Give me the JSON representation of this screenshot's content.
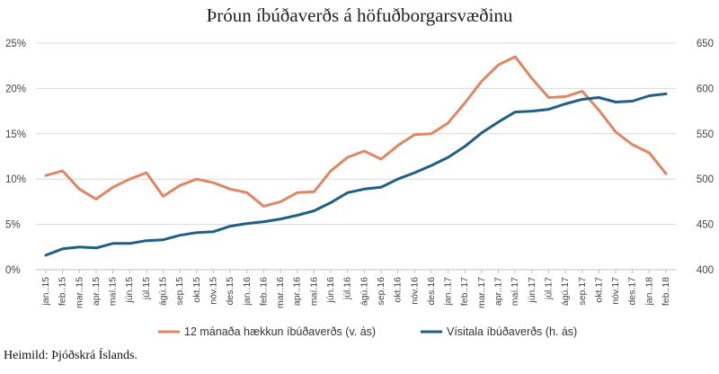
{
  "chart_data": {
    "type": "line",
    "title": "Þróun íbúðaverðs á höfuðborgarsvæðinu",
    "source": "Heimild: Þjóðskrá Íslands.",
    "categories": [
      "jan..15",
      "feb..15",
      "mar..15",
      "apr..15",
      "maí.15",
      "jún.15",
      "júl.15",
      "ágú.15",
      "sep.15",
      "okt.15",
      "nóv.15",
      "des.15",
      "jan..16",
      "feb..16",
      "mar..16",
      "apr..16",
      "maí.16",
      "jún.16",
      "júl.16",
      "ágú.16",
      "sep.16",
      "okt.16",
      "nóv.16",
      "des.16",
      "jan..17",
      "feb..17",
      "mar..17",
      "apr..17",
      "maí.17",
      "jún.17",
      "júl.17",
      "ágú.17",
      "sep.17",
      "okt.17",
      "nóv.17",
      "des.17",
      "jan..18",
      "feb..18"
    ],
    "left_axis": {
      "ylim": [
        0,
        25
      ],
      "ticks": [
        "0%",
        "5%",
        "10%",
        "15%",
        "20%",
        "25%"
      ],
      "tick_values": [
        0,
        5,
        10,
        15,
        20,
        25
      ]
    },
    "right_axis": {
      "ylim": [
        400,
        650
      ],
      "ticks": [
        "400",
        "450",
        "500",
        "550",
        "600",
        "650"
      ],
      "tick_values": [
        400,
        450,
        500,
        550,
        600,
        650
      ]
    },
    "series": [
      {
        "name": "12 mánaða hækkun íbúðaverðs (v. ás)",
        "axis": "left",
        "color": "#e08662",
        "values": [
          10.4,
          10.9,
          8.9,
          7.8,
          9.1,
          10.0,
          10.7,
          8.1,
          9.3,
          10.0,
          9.6,
          8.9,
          8.5,
          7.0,
          7.5,
          8.5,
          8.6,
          10.9,
          12.4,
          13.1,
          12.2,
          13.7,
          14.9,
          15.0,
          16.2,
          18.4,
          20.8,
          22.6,
          23.5,
          21.1,
          19.0,
          19.1,
          19.7,
          17.6,
          15.2,
          13.8,
          12.9,
          10.6
        ]
      },
      {
        "name": "Vísitala íbúðaverðs (h. ás)",
        "axis": "right",
        "color": "#1f5f85",
        "values": [
          416,
          423,
          425,
          424,
          429,
          429,
          432,
          433,
          438,
          441,
          442,
          448,
          451,
          453,
          456,
          460,
          465,
          474,
          485,
          489,
          491,
          500,
          507,
          515,
          524,
          536,
          551,
          563,
          574,
          575,
          577,
          583,
          588,
          590,
          585,
          586,
          592,
          594
        ]
      }
    ],
    "grid": "horizontal",
    "legend_placement": "bottom"
  }
}
